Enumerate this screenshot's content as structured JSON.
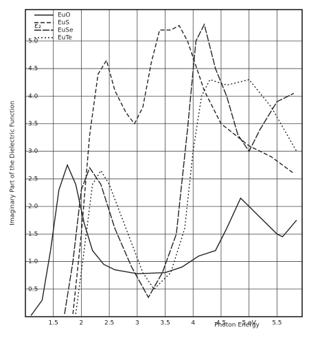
{
  "chart_data": {
    "type": "line",
    "y_label": "Imaginary Part of the Dielectric Function",
    "x_label": "Photon Energy",
    "y_symbol": "ε₂",
    "xlim": [
      1.0,
      5.95
    ],
    "ylim": [
      0,
      5.57
    ],
    "xticks": [
      1.5,
      2,
      2.5,
      3,
      3.5,
      4,
      4.5,
      {
        "value": 5,
        "label": "5 eV"
      },
      5.5
    ],
    "yticks": [
      0.5,
      {
        "value": 1,
        "label": "1.0"
      },
      1.5,
      {
        "value": 2,
        "label": "2.0"
      },
      2.5,
      {
        "value": 3,
        "label": "3.0"
      },
      3.5,
      {
        "value": 4,
        "label": "4.0"
      },
      4.5,
      {
        "value": 5,
        "label": "5.0"
      }
    ],
    "grid": true,
    "legend": "upper left",
    "series": [
      {
        "name": "EuO",
        "color": "#222222",
        "dash": "none",
        "x": [
          1.1,
          1.3,
          1.45,
          1.6,
          1.75,
          1.9,
          2.05,
          2.2,
          2.4,
          2.6,
          3.0,
          3.5,
          3.8,
          4.1,
          4.4,
          4.6,
          4.85,
          5.0,
          5.2,
          5.5,
          5.6,
          5.85
        ],
        "values": [
          0.02,
          0.3,
          1.2,
          2.3,
          2.75,
          2.4,
          1.7,
          1.2,
          0.95,
          0.85,
          0.78,
          0.8,
          0.9,
          1.1,
          1.2,
          1.6,
          2.15,
          2.0,
          1.8,
          1.5,
          1.45,
          1.75
        ]
      },
      {
        "name": "EuS",
        "color": "#222222",
        "dash": "6 3",
        "x": [
          1.85,
          2.0,
          2.15,
          2.3,
          2.45,
          2.6,
          2.8,
          2.95,
          3.1,
          3.25,
          3.4,
          3.6,
          3.75,
          3.9,
          4.2,
          4.5,
          5.0,
          5.4,
          5.8
        ],
        "values": [
          0.05,
          1.5,
          3.3,
          4.4,
          4.65,
          4.1,
          3.7,
          3.5,
          3.8,
          4.6,
          5.2,
          5.2,
          5.28,
          5.0,
          4.1,
          3.5,
          3.1,
          2.9,
          2.6
        ]
      },
      {
        "name": "EuSe",
        "color": "#222222",
        "dash": "10 2",
        "x": [
          1.7,
          1.85,
          2.0,
          2.15,
          2.35,
          2.6,
          2.9,
          3.2,
          3.45,
          3.7,
          3.9,
          4.05,
          4.2,
          4.4,
          4.6,
          4.8,
          5.0,
          5.2,
          5.5,
          5.8
        ],
        "values": [
          0.05,
          1.0,
          2.3,
          2.7,
          2.4,
          1.6,
          0.9,
          0.35,
          0.8,
          1.5,
          3.4,
          5.0,
          5.3,
          4.5,
          4.0,
          3.3,
          3.0,
          3.4,
          3.9,
          4.05
        ]
      },
      {
        "name": "EuTe",
        "color": "#222222",
        "dash": "2 3",
        "x": [
          1.9,
          2.05,
          2.2,
          2.35,
          2.5,
          2.8,
          3.1,
          3.3,
          3.6,
          3.85,
          4.0,
          4.15,
          4.3,
          4.6,
          5.0,
          5.4,
          5.85
        ],
        "values": [
          0.05,
          1.2,
          2.4,
          2.65,
          2.4,
          1.6,
          0.8,
          0.5,
          0.8,
          1.6,
          3.0,
          4.0,
          4.3,
          4.2,
          4.3,
          3.8,
          3.0
        ]
      }
    ]
  }
}
